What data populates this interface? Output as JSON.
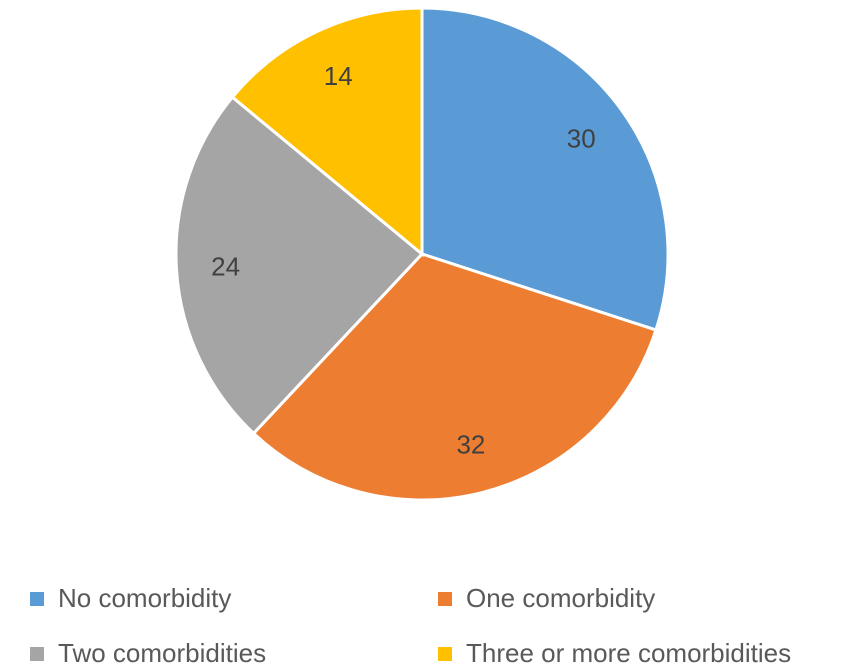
{
  "chart_data": {
    "type": "pie",
    "title": "",
    "start_angle_deg": 0,
    "direction": "clockwise",
    "slices": [
      {
        "label": "No comorbidity",
        "value": 30,
        "color": "#5B9BD5"
      },
      {
        "label": "One comorbidity",
        "value": 32,
        "color": "#ED7D31"
      },
      {
        "label": "Two comorbidities",
        "value": 24,
        "color": "#A5A5A5"
      },
      {
        "label": "Three or more comorbidities",
        "value": 14,
        "color": "#FFC000"
      }
    ],
    "data_labels": true,
    "legend_position": "bottom"
  }
}
